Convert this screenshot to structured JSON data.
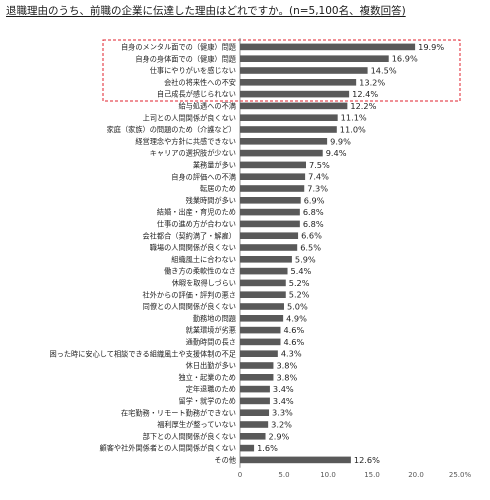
{
  "chart_data": {
    "type": "bar",
    "orientation": "horizontal",
    "title": "退職理由のうち、前職の企業に伝達した理由はどれですか。(n=5,100名、複数回答)",
    "categories": [
      "自身のメンタル面での（健康）問題",
      "自身の身体面での（健康）問題",
      "仕事にやりがいを感じない",
      "会社の将来性への不安",
      "自己成長が感じられない",
      "給与処遇への不満",
      "上司との人間関係が良くない",
      "家庭（家族）の問題のため（介護など）",
      "経営理念や方針に共感できない",
      "キャリアの選択肢が少ない",
      "業務量が多い",
      "自身の評価への不満",
      "転居のため",
      "残業時間が多い",
      "結婚・出産・育児のため",
      "仕事の進め方が合わない",
      "会社都合（契約満了・解雇）",
      "職場の人間関係が良くない",
      "組織風土に合わない",
      "働き方の柔軟性のなさ",
      "休暇を取得しづらい",
      "社外からの評価・評判の悪さ",
      "同僚との人間関係が良くない",
      "勤務地の問題",
      "就業環境が劣悪",
      "通勤時間の長さ",
      "困った時に安心して相談できる組織風土や支援体制の不足",
      "休日出勤が多い",
      "独立・起業のため",
      "定年退職のため",
      "留学・就学のため",
      "在宅勤務・リモート勤務ができない",
      "福利厚生が整っていない",
      "部下との人間関係が良くない",
      "顧客や社外関係者との人間関係が良くない",
      "その他"
    ],
    "values": [
      19.9,
      16.9,
      14.5,
      13.2,
      12.4,
      12.2,
      11.1,
      11.0,
      9.9,
      9.4,
      7.5,
      7.4,
      7.3,
      6.9,
      6.8,
      6.8,
      6.6,
      6.5,
      5.9,
      5.4,
      5.2,
      5.2,
      5.0,
      4.9,
      4.6,
      4.6,
      4.3,
      3.8,
      3.8,
      3.4,
      3.4,
      3.3,
      3.2,
      2.9,
      1.6,
      12.6
    ],
    "value_suffix": "%",
    "xlim": [
      0,
      25
    ],
    "xticks": [
      "0",
      "5.0",
      "10.0",
      "15.0",
      "20.0",
      "25.0%"
    ],
    "highlight": {
      "start_index": 0,
      "end_index": 4,
      "style": "red-dashed-box"
    },
    "bar_color": "#595959",
    "highlight_color": "#e0202e",
    "grid": false
  }
}
